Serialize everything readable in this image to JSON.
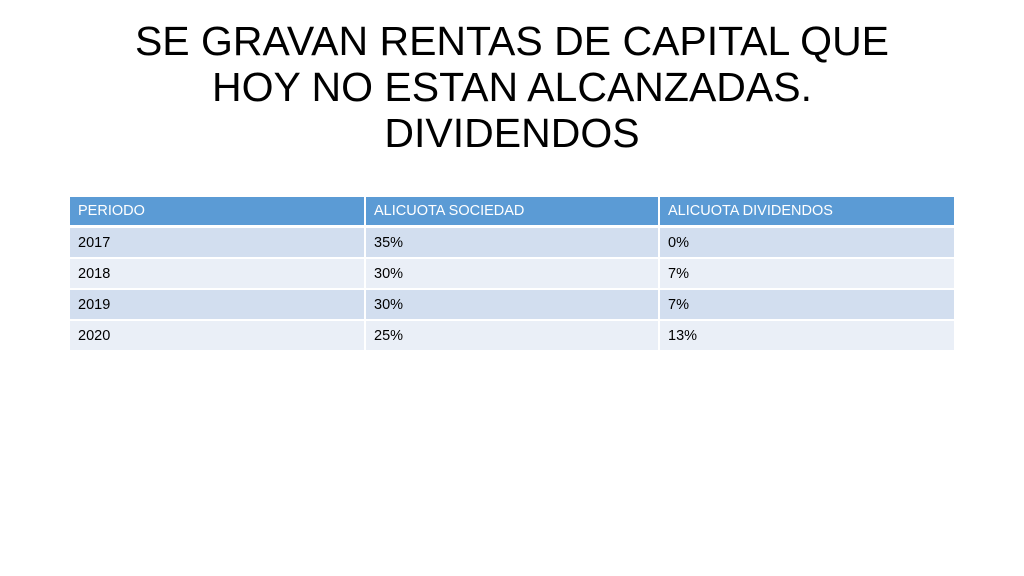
{
  "slide": {
    "title_lines": [
      "SE GRAVAN RENTAS DE CAPITAL QUE",
      "HOY NO ESTAN ALCANZADAS.",
      "DIVIDENDOS"
    ]
  },
  "table": {
    "headers": [
      "PERIODO",
      "ALICUOTA SOCIEDAD",
      "ALICUOTA DIVIDENDOS"
    ],
    "rows": [
      [
        "2017",
        "35%",
        "0%"
      ],
      [
        "2018",
        "30%",
        "7%"
      ],
      [
        "2019",
        "30%",
        "7%"
      ],
      [
        "2020",
        "25%",
        "13%"
      ]
    ]
  },
  "colors": {
    "header_bg": "#5b9bd5",
    "row_dark": "#d2deef",
    "row_light": "#eaeff7",
    "header_text": "#ffffff",
    "body_text": "#000000"
  }
}
